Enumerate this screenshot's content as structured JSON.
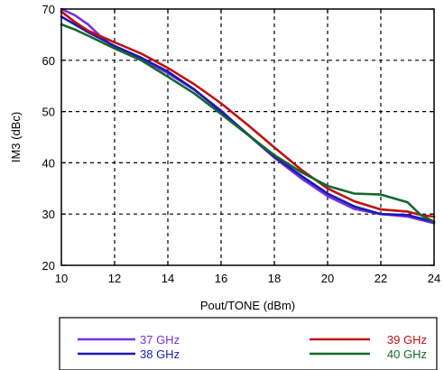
{
  "chart_data": {
    "type": "line",
    "title": "",
    "xlabel": "Pout/TONE (dBm)",
    "ylabel": "IM3 (dBc)",
    "xlim": [
      10,
      24
    ],
    "ylim": [
      20,
      70
    ],
    "x_ticks": [
      10,
      12,
      14,
      16,
      18,
      20,
      22,
      24
    ],
    "y_ticks": [
      20,
      30,
      40,
      50,
      60,
      70
    ],
    "x_tick_labels": [
      "10",
      "12",
      "14",
      "16",
      "18",
      "20",
      "22",
      "24"
    ],
    "y_tick_labels": [
      "20",
      "30",
      "40",
      "50",
      "60",
      "70"
    ],
    "grid": true,
    "grid_style": "dashed",
    "legend_position": "bottom, outside plot",
    "series": [
      {
        "name": "37 GHz",
        "color": "#7b2fe0",
        "x": [
          10,
          10.5,
          11,
          11.5,
          12,
          13,
          14,
          15,
          16,
          17,
          18,
          19,
          20,
          21,
          22,
          23,
          24
        ],
        "y": [
          70,
          68.8,
          67,
          64.5,
          62.5,
          60.3,
          57.5,
          54.2,
          50.2,
          45.5,
          41.0,
          37.0,
          33.5,
          31.0,
          30.0,
          29.5,
          28.2
        ]
      },
      {
        "name": "38 GHz",
        "color": "#1a1ab4",
        "x": [
          10,
          10.5,
          11,
          12,
          13,
          14,
          15,
          16,
          17,
          18,
          19,
          20,
          21,
          22,
          23,
          24
        ],
        "y": [
          68.5,
          67.0,
          65.5,
          62.8,
          60.5,
          57.8,
          54.3,
          50.0,
          45.6,
          41.2,
          37.5,
          34.0,
          31.5,
          30.0,
          29.8,
          28.5
        ]
      },
      {
        "name": "39 GHz",
        "color": "#c01010",
        "x": [
          10,
          10.5,
          11,
          12,
          13,
          14,
          15,
          16,
          17,
          18,
          19,
          20,
          21,
          22,
          23,
          23.5,
          24
        ],
        "y": [
          69.5,
          67.5,
          65.8,
          63.5,
          61.3,
          58.5,
          55.3,
          51.6,
          47.4,
          43.0,
          38.7,
          35.0,
          32.5,
          30.9,
          30.5,
          29.8,
          29.5
        ]
      },
      {
        "name": "40 GHz",
        "color": "#13682c",
        "x": [
          10,
          10.5,
          11,
          12,
          13,
          14,
          15,
          16,
          17,
          18,
          19,
          20,
          21,
          22,
          23,
          23.5,
          24
        ],
        "y": [
          67.0,
          66.0,
          64.8,
          62.3,
          60.0,
          56.8,
          53.5,
          49.5,
          45.5,
          41.5,
          38.2,
          35.5,
          34.0,
          33.8,
          32.3,
          29.8,
          28.5
        ]
      }
    ]
  }
}
